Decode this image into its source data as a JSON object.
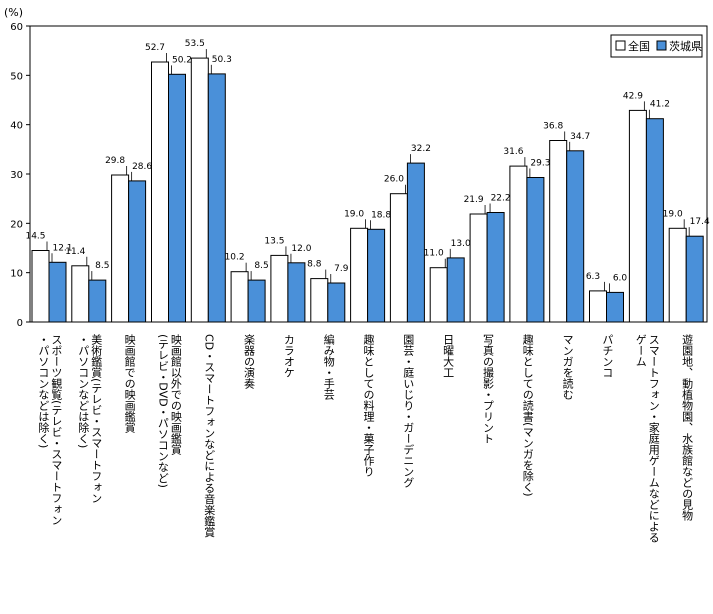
{
  "chart_data": {
    "type": "bar",
    "unit_label": "(%)",
    "ylim": [
      0,
      60
    ],
    "yticks": [
      "0",
      "10",
      "20",
      "30",
      "40",
      "50",
      "60"
    ],
    "grid": false,
    "legend_position": "top-right",
    "categories": [
      "スポーツ観覧(テレビ・スマートフォン・パソコンなどは除く)",
      "美術鑑賞(テレビ・スマートフォン・パソコンなどは除く)",
      "映画館での映画鑑賞",
      "映画館以外での映画鑑賞(テレビ・DVD・パソコンなど)",
      "CD・スマートフォンなどによる音楽鑑賞",
      "楽器の演奏",
      "カラオケ",
      "編み物・手芸",
      "趣味としての料理・菓子作り",
      "園芸・庭いじり・ガーデニング",
      "日曜大工",
      "写真の撮影・プリント",
      "趣味としての読書(マンガを除く)",
      "マンガを読む",
      "パチンコ",
      "スマートフォン・家庭用ゲームなどによるゲーム",
      "遊園地、動植物園、水族館などの見物"
    ],
    "category_lines": [
      [
        "スポーツ観覧(テレビ・スマートフォン",
        "・パソコンなどは除く)"
      ],
      [
        "美術鑑賞(テレビ・スマートフォン",
        "・パソコンなどは除く)"
      ],
      [
        "映画館での映画鑑賞"
      ],
      [
        "映画館以外での映画鑑賞",
        "(テレビ・DVD・パソコンなど)"
      ],
      [
        "CD・スマートフォンなどによる音楽鑑賞"
      ],
      [
        "楽器の演奏"
      ],
      [
        "カラオケ"
      ],
      [
        "編み物・手芸"
      ],
      [
        "趣味としての料理・菓子作り"
      ],
      [
        "園芸・庭いじり・ガーデニング"
      ],
      [
        "日曜大工"
      ],
      [
        "写真の撮影・プリント"
      ],
      [
        "趣味としての読書(マンガを除く)"
      ],
      [
        "マンガを読む"
      ],
      [
        "パチンコ"
      ],
      [
        "スマートフォン・家庭用ゲームなどによる",
        "ゲーム"
      ],
      [
        "遊園地、動植物園、水族館などの見物"
      ]
    ],
    "series": [
      {
        "name": "全国",
        "color": "#ffffff",
        "values": [
          14.5,
          11.4,
          29.8,
          52.7,
          53.5,
          10.2,
          13.5,
          8.8,
          19.0,
          26.0,
          11.0,
          21.9,
          31.6,
          36.8,
          6.3,
          42.9,
          19.0
        ],
        "labels": [
          "14.5",
          "11.4",
          "29.8",
          "52.7",
          "53.5",
          "10.2",
          "13.5",
          "8.8",
          "19.0",
          "26.0",
          "11.0",
          "21.9",
          "31.6",
          "36.8",
          "6.3",
          "42.9",
          "19.0"
        ]
      },
      {
        "name": "茨城県",
        "color": "#4a90d9",
        "values": [
          12.1,
          8.5,
          28.6,
          50.2,
          50.3,
          8.5,
          12.0,
          7.9,
          18.8,
          32.2,
          13.0,
          22.2,
          29.3,
          34.7,
          6.0,
          41.2,
          17.4
        ],
        "labels": [
          "12.1",
          "8.5",
          "28.6",
          "50.2",
          "50.3",
          "8.5",
          "12.0",
          "7.9",
          "18.8",
          "32.2",
          "13.0",
          "22.2",
          "29.3",
          "34.7",
          "6.0",
          "41.2",
          "17.4"
        ]
      }
    ]
  }
}
